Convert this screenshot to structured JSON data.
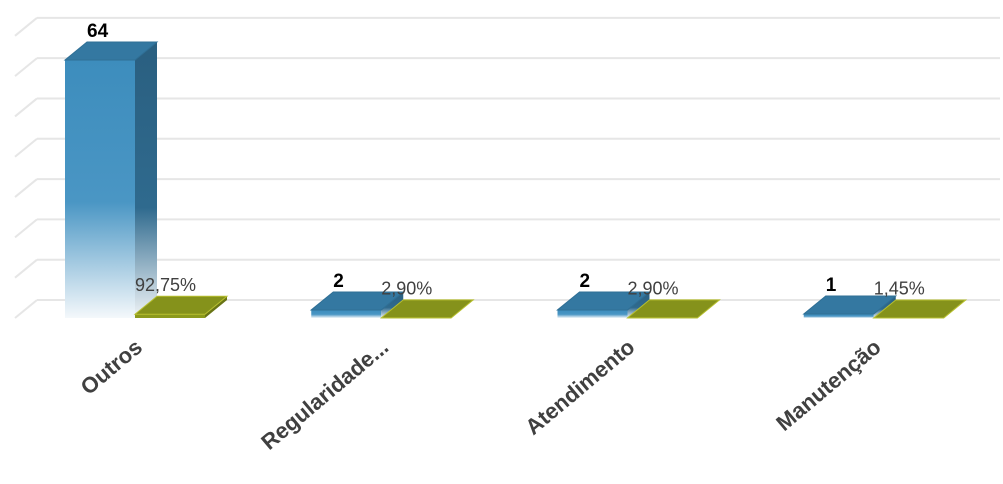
{
  "chart_data": {
    "type": "bar3d",
    "categories": [
      "Outros",
      "Regularidade...",
      "Atendimento",
      "Manutenção"
    ],
    "series": [
      {
        "color": "#3d8dbd",
        "values": [
          64,
          2,
          2,
          1
        ]
      },
      {
        "color": "#8c9a1c",
        "values": [
          0.9275,
          0.029,
          0.029,
          0.0145
        ],
        "value_labels": [
          "92,75%",
          "2,90%",
          "2,90%",
          "1,45%"
        ]
      }
    ],
    "ylim": [
      0,
      70
    ],
    "yticks": [
      0,
      10,
      20,
      30,
      40,
      50,
      60,
      70
    ],
    "grid": true
  }
}
